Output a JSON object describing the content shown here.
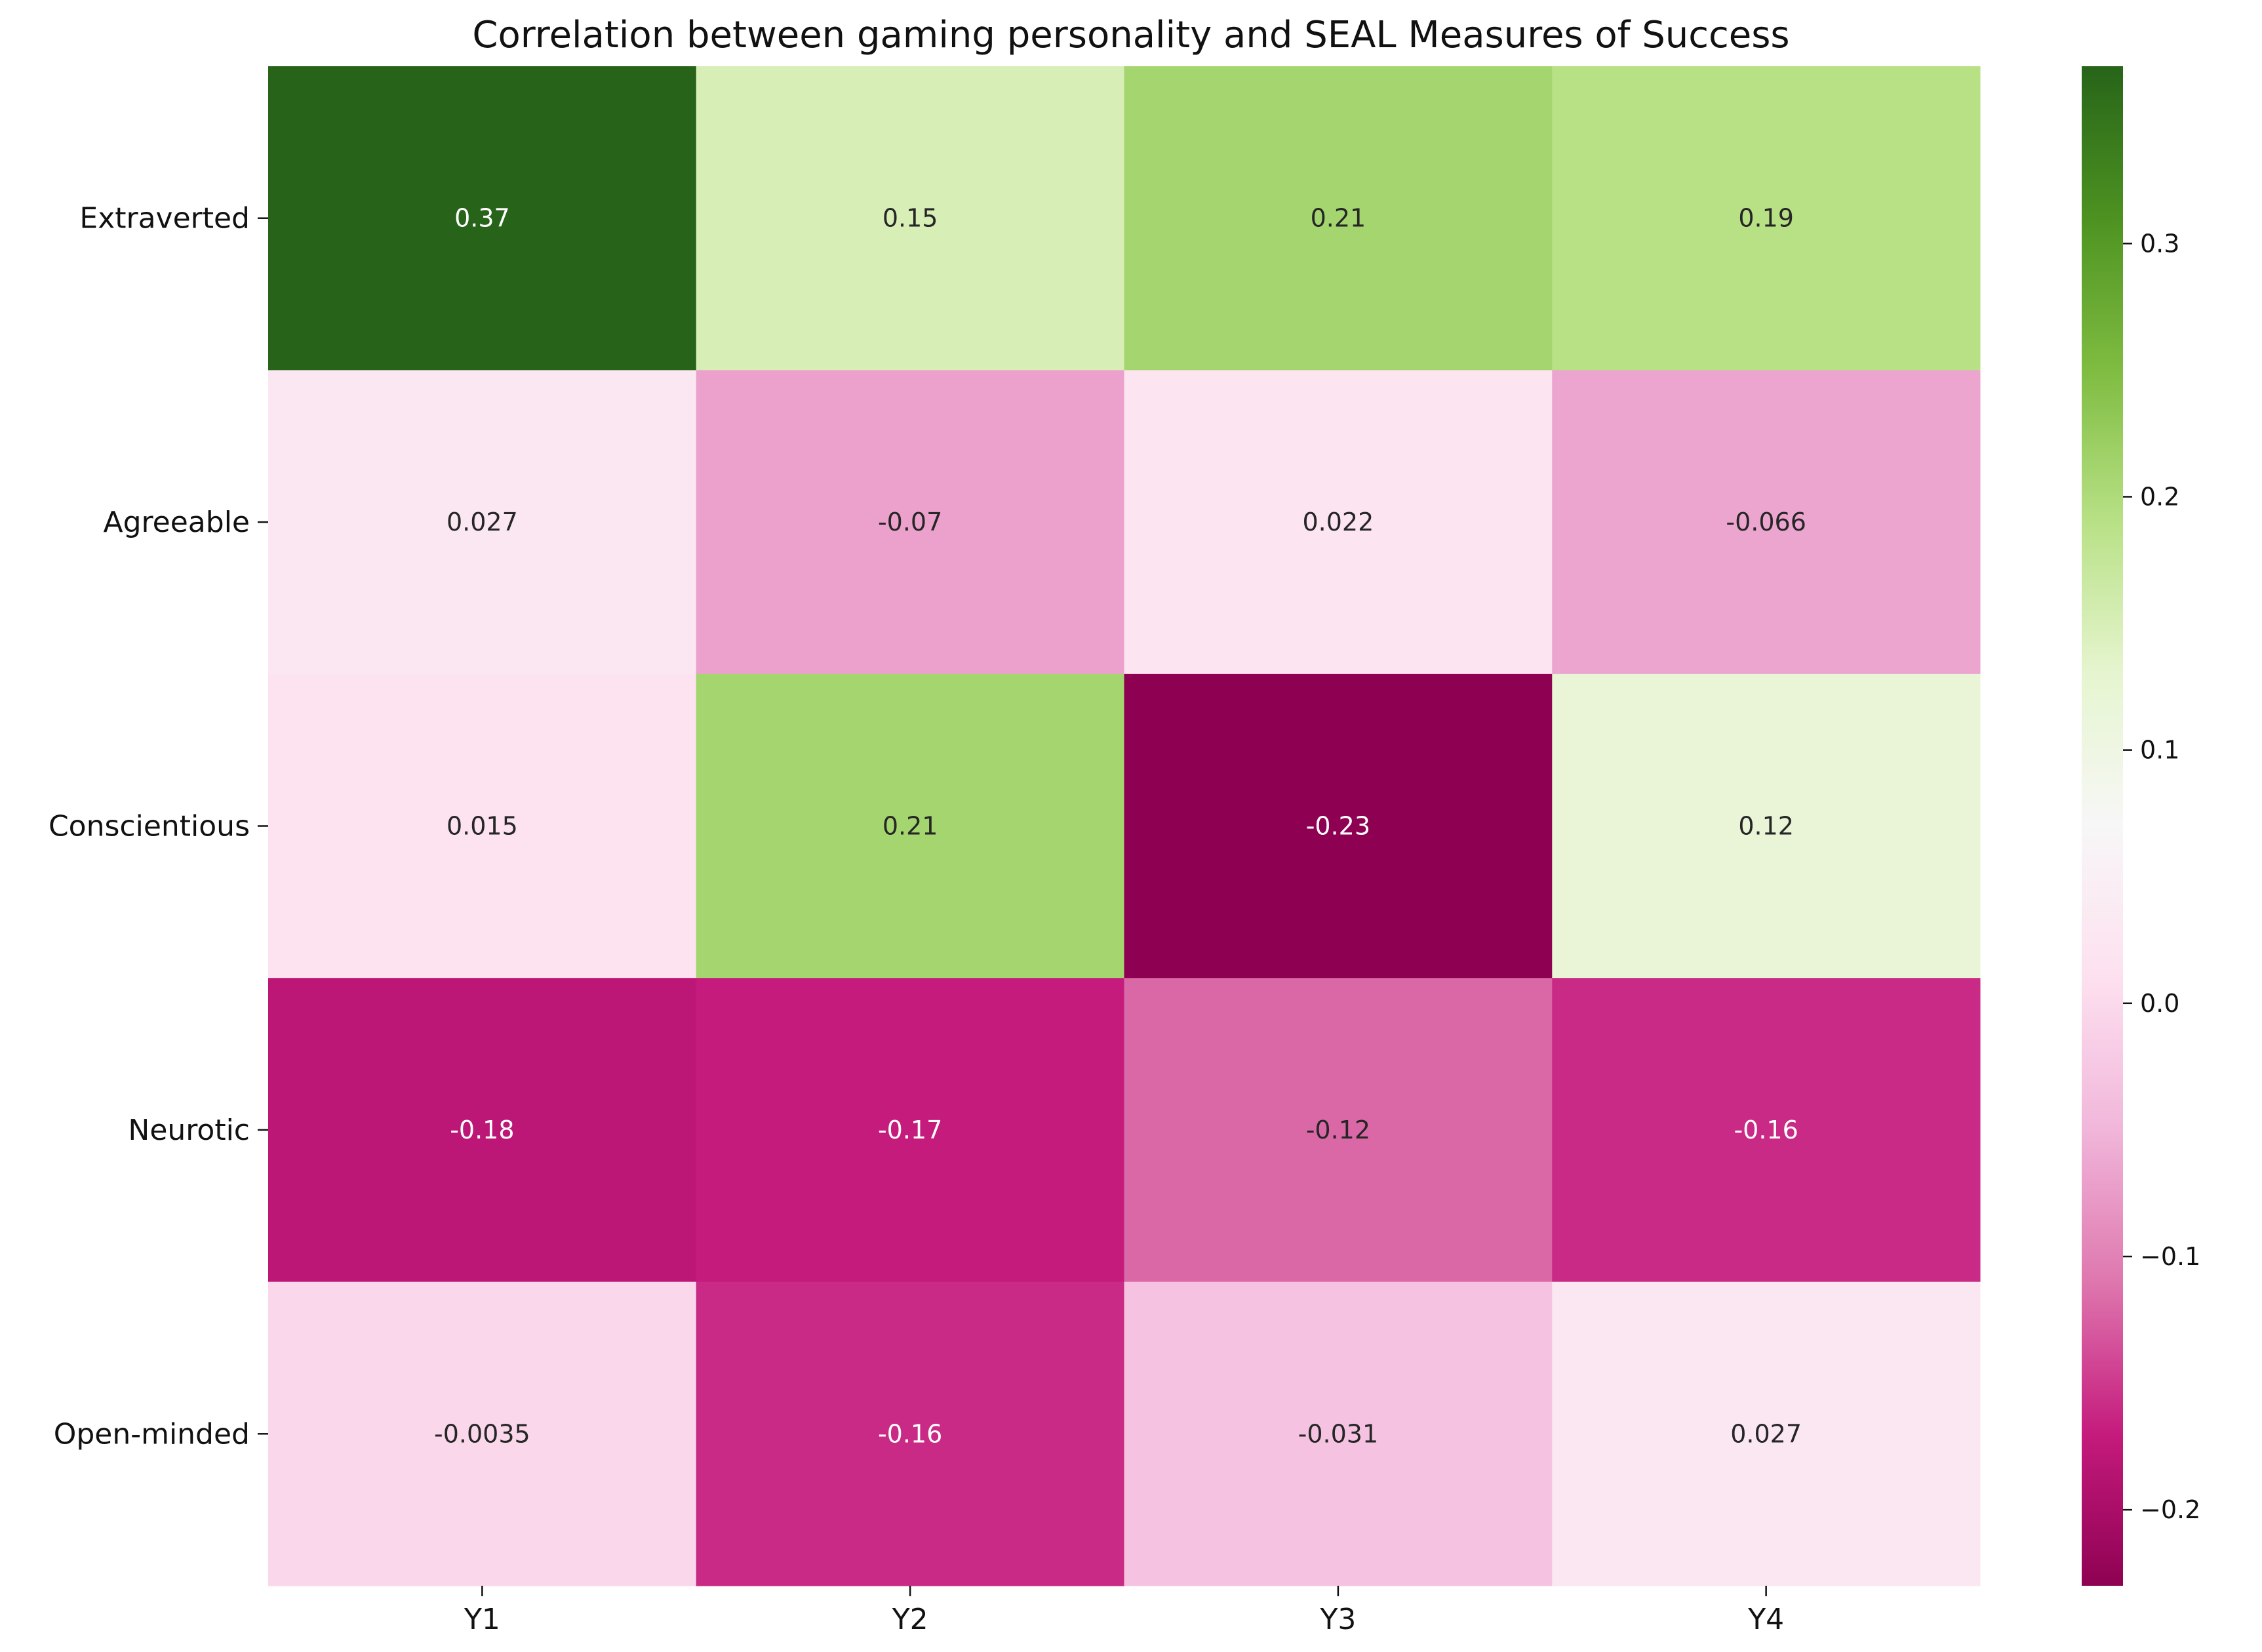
{
  "chart_data": {
    "type": "heatmap",
    "title": "Correlation between gaming personality and SEAL Measures of Success",
    "xlabel": "",
    "ylabel": "",
    "x_categories": [
      "Y1",
      "Y2",
      "Y3",
      "Y4"
    ],
    "y_categories": [
      "Extraverted",
      "Agreeable",
      "Conscientious",
      "Neurotic",
      "Open-minded"
    ],
    "values": [
      [
        0.37,
        0.15,
        0.21,
        0.19
      ],
      [
        0.027,
        -0.07,
        0.022,
        -0.066
      ],
      [
        0.015,
        0.21,
        -0.23,
        0.12
      ],
      [
        -0.18,
        -0.17,
        -0.12,
        -0.16
      ],
      [
        -0.0035,
        -0.16,
        -0.031,
        0.027
      ]
    ],
    "annotations": [
      [
        "0.37",
        "0.15",
        "0.21",
        "0.19"
      ],
      [
        "0.027",
        "-0.07",
        "0.022",
        "-0.066"
      ],
      [
        "0.015",
        "0.21",
        "-0.23",
        "0.12"
      ],
      [
        "-0.18",
        "-0.17",
        "-0.12",
        "-0.16"
      ],
      [
        "-0.0035",
        "-0.16",
        "-0.031",
        "0.027"
      ]
    ],
    "colormap": "PiYG",
    "vmin": -0.23,
    "vmax": 0.37,
    "colorbar_ticks": [
      0.3,
      0.2,
      0.1,
      0.0,
      -0.1,
      -0.2
    ],
    "colorbar_tick_labels": [
      "0.3",
      "0.2",
      "0.1",
      "0.0",
      "−0.1",
      "−0.2"
    ],
    "grid": false,
    "legend": "colorbar-right"
  }
}
